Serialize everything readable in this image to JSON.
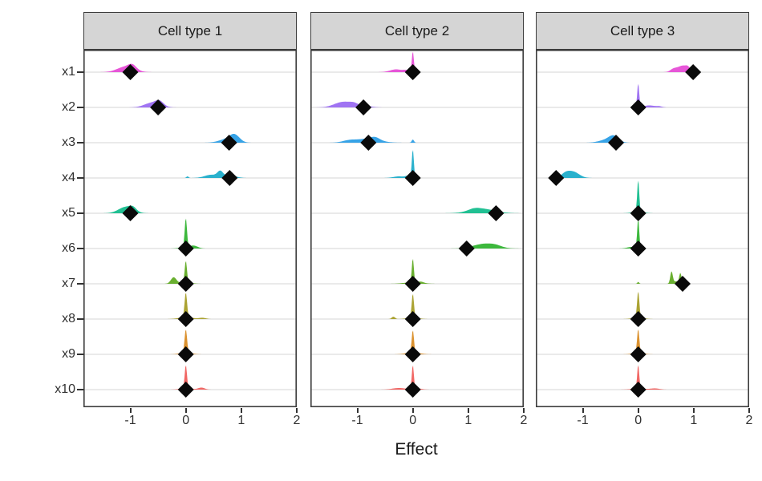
{
  "chart_data": {
    "type": "ridgeline",
    "title": "",
    "xlabel": "Effect",
    "ylabel": "",
    "x_range": [
      -1.846,
      2.0
    ],
    "x_ticks": [
      -1,
      0,
      1,
      2
    ],
    "x_tick_labels": [
      "-1",
      "0",
      "1",
      "2"
    ],
    "categories": [
      "x1",
      "x2",
      "x3",
      "x4",
      "x5",
      "x6",
      "x7",
      "x8",
      "x9",
      "x10"
    ],
    "category_colors": [
      "#E64FD6",
      "#9C6EF3",
      "#2E9FE6",
      "#21AECB",
      "#18BD8F",
      "#35B535",
      "#63AC26",
      "#A89F2B",
      "#DA8E28",
      "#F0615E"
    ],
    "grid": "horizontal-only",
    "legend": "none",
    "facets": [
      {
        "label": "Cell type 1",
        "estimates": [
          -1.0,
          -0.5,
          0.78,
          0.79,
          -1.0,
          0,
          0,
          0,
          0,
          0
        ],
        "densities": [
          [
            [
              -1.08,
              0.15,
              7
            ],
            [
              -0.96,
              0.07,
              5
            ]
          ],
          [
            [
              -0.6,
              0.14,
              6
            ],
            [
              -0.47,
              0.07,
              5
            ]
          ],
          [
            [
              0.88,
              0.09,
              9
            ],
            [
              0.72,
              0.13,
              4
            ]
          ],
          [
            [
              0.62,
              0.05,
              7
            ],
            [
              0.46,
              0.12,
              4
            ],
            [
              0.8,
              0.1,
              3.5
            ],
            [
              0.03,
              0.02,
              2
            ]
          ],
          [
            [
              -1.08,
              0.13,
              8
            ],
            [
              -0.95,
              0.06,
              4
            ]
          ],
          [
            [
              0,
              0.02,
              36
            ],
            [
              0.15,
              0.07,
              3
            ],
            [
              0,
              0.1,
              2
            ]
          ],
          [
            [
              0,
              0.02,
              27
            ],
            [
              -0.22,
              0.05,
              8
            ],
            [
              0,
              0.1,
              2
            ]
          ],
          [
            [
              0,
              0.022,
              31
            ],
            [
              0,
              0.12,
              2.5
            ],
            [
              0.3,
              0.06,
              1.5
            ]
          ],
          [
            [
              0,
              0.022,
              29
            ],
            [
              0,
              0.1,
              2.5
            ]
          ],
          [
            [
              0,
              0.02,
              29
            ],
            [
              0.28,
              0.06,
              2.5
            ],
            [
              0,
              0.1,
              2
            ]
          ]
        ]
      },
      {
        "label": "Cell type 2",
        "estimates": [
          0,
          -0.89,
          -0.8,
          0,
          1.5,
          0.97,
          0,
          0,
          0,
          0
        ],
        "densities": [
          [
            [
              0,
              0.018,
              26
            ],
            [
              -0.3,
              0.11,
              3.5
            ],
            [
              -0.12,
              0.05,
              2
            ]
          ],
          [
            [
              -1.25,
              0.16,
              7
            ],
            [
              -1.05,
              0.08,
              3
            ],
            [
              -0.82,
              0.1,
              1.5
            ]
          ],
          [
            [
              -0.8,
              0.2,
              5
            ],
            [
              -0.68,
              0.08,
              3
            ],
            [
              -1.15,
              0.12,
              2.5
            ],
            [
              0,
              0.02,
              4
            ]
          ],
          [
            [
              0,
              0.018,
              36
            ],
            [
              -0.25,
              0.1,
              2
            ],
            [
              -0.1,
              0.04,
              2
            ]
          ],
          [
            [
              1.25,
              0.22,
              5.5
            ],
            [
              1.1,
              0.1,
              2
            ]
          ],
          [
            [
              1.3,
              0.2,
              6
            ],
            [
              1.5,
              0.1,
              1.5
            ]
          ],
          [
            [
              0,
              0.018,
              30
            ],
            [
              0,
              0.15,
              2
            ],
            [
              0.15,
              0.05,
              1.5
            ]
          ],
          [
            [
              0,
              0.02,
              30
            ],
            [
              -0.35,
              0.03,
              3
            ],
            [
              0,
              0.1,
              2
            ]
          ],
          [
            [
              0,
              0.02,
              28
            ],
            [
              0,
              0.12,
              2.5
            ]
          ],
          [
            [
              0,
              0.018,
              30
            ],
            [
              -0.25,
              0.12,
              2
            ],
            [
              0.08,
              0.08,
              1.5
            ]
          ]
        ]
      },
      {
        "label": "Cell type 3",
        "estimates": [
          0.99,
          0,
          -0.4,
          -1.48,
          0,
          0,
          0.8,
          0,
          0,
          0
        ],
        "densities": [
          [
            [
              0.8,
              0.08,
              8
            ],
            [
              0.64,
              0.06,
              4
            ],
            [
              0.9,
              0.04,
              4
            ]
          ],
          [
            [
              0,
              0.018,
              30
            ],
            [
              0.2,
              0.1,
              2.5
            ],
            [
              0.38,
              0.05,
              1.2
            ]
          ],
          [
            [
              -0.44,
              0.09,
              8
            ],
            [
              -0.6,
              0.12,
              3
            ]
          ],
          [
            [
              -1.18,
              0.11,
              8
            ],
            [
              -1.32,
              0.07,
              4
            ]
          ],
          [
            [
              0,
              0.018,
              40
            ],
            [
              0,
              0.1,
              2
            ]
          ],
          [
            [
              0,
              0.018,
              37
            ],
            [
              -0.12,
              0.08,
              2
            ]
          ],
          [
            [
              0.6,
              0.022,
              15
            ],
            [
              0.76,
              0.02,
              13
            ],
            [
              0.68,
              0.05,
              3
            ],
            [
              0,
              0.015,
              2.5
            ]
          ],
          [
            [
              0,
              0.02,
              33
            ],
            [
              0,
              0.1,
              2
            ]
          ],
          [
            [
              0,
              0.02,
              30
            ],
            [
              0,
              0.1,
              2
            ]
          ],
          [
            [
              0,
              0.018,
              30
            ],
            [
              0.3,
              0.08,
              1.5
            ],
            [
              0,
              0.12,
              1.5
            ]
          ]
        ]
      }
    ],
    "style": {
      "point_shape": "diamond",
      "point_color": "#0A0A0A",
      "grid_color": "#E4E4E4",
      "panel_border_color": "#3C3C3C",
      "strip_fill": "#D5D5D5",
      "strip_text_color": "#1A1A1A",
      "axis_text_color": "#303030",
      "tick_color": "#333333",
      "background": "#FFFFFF"
    }
  }
}
